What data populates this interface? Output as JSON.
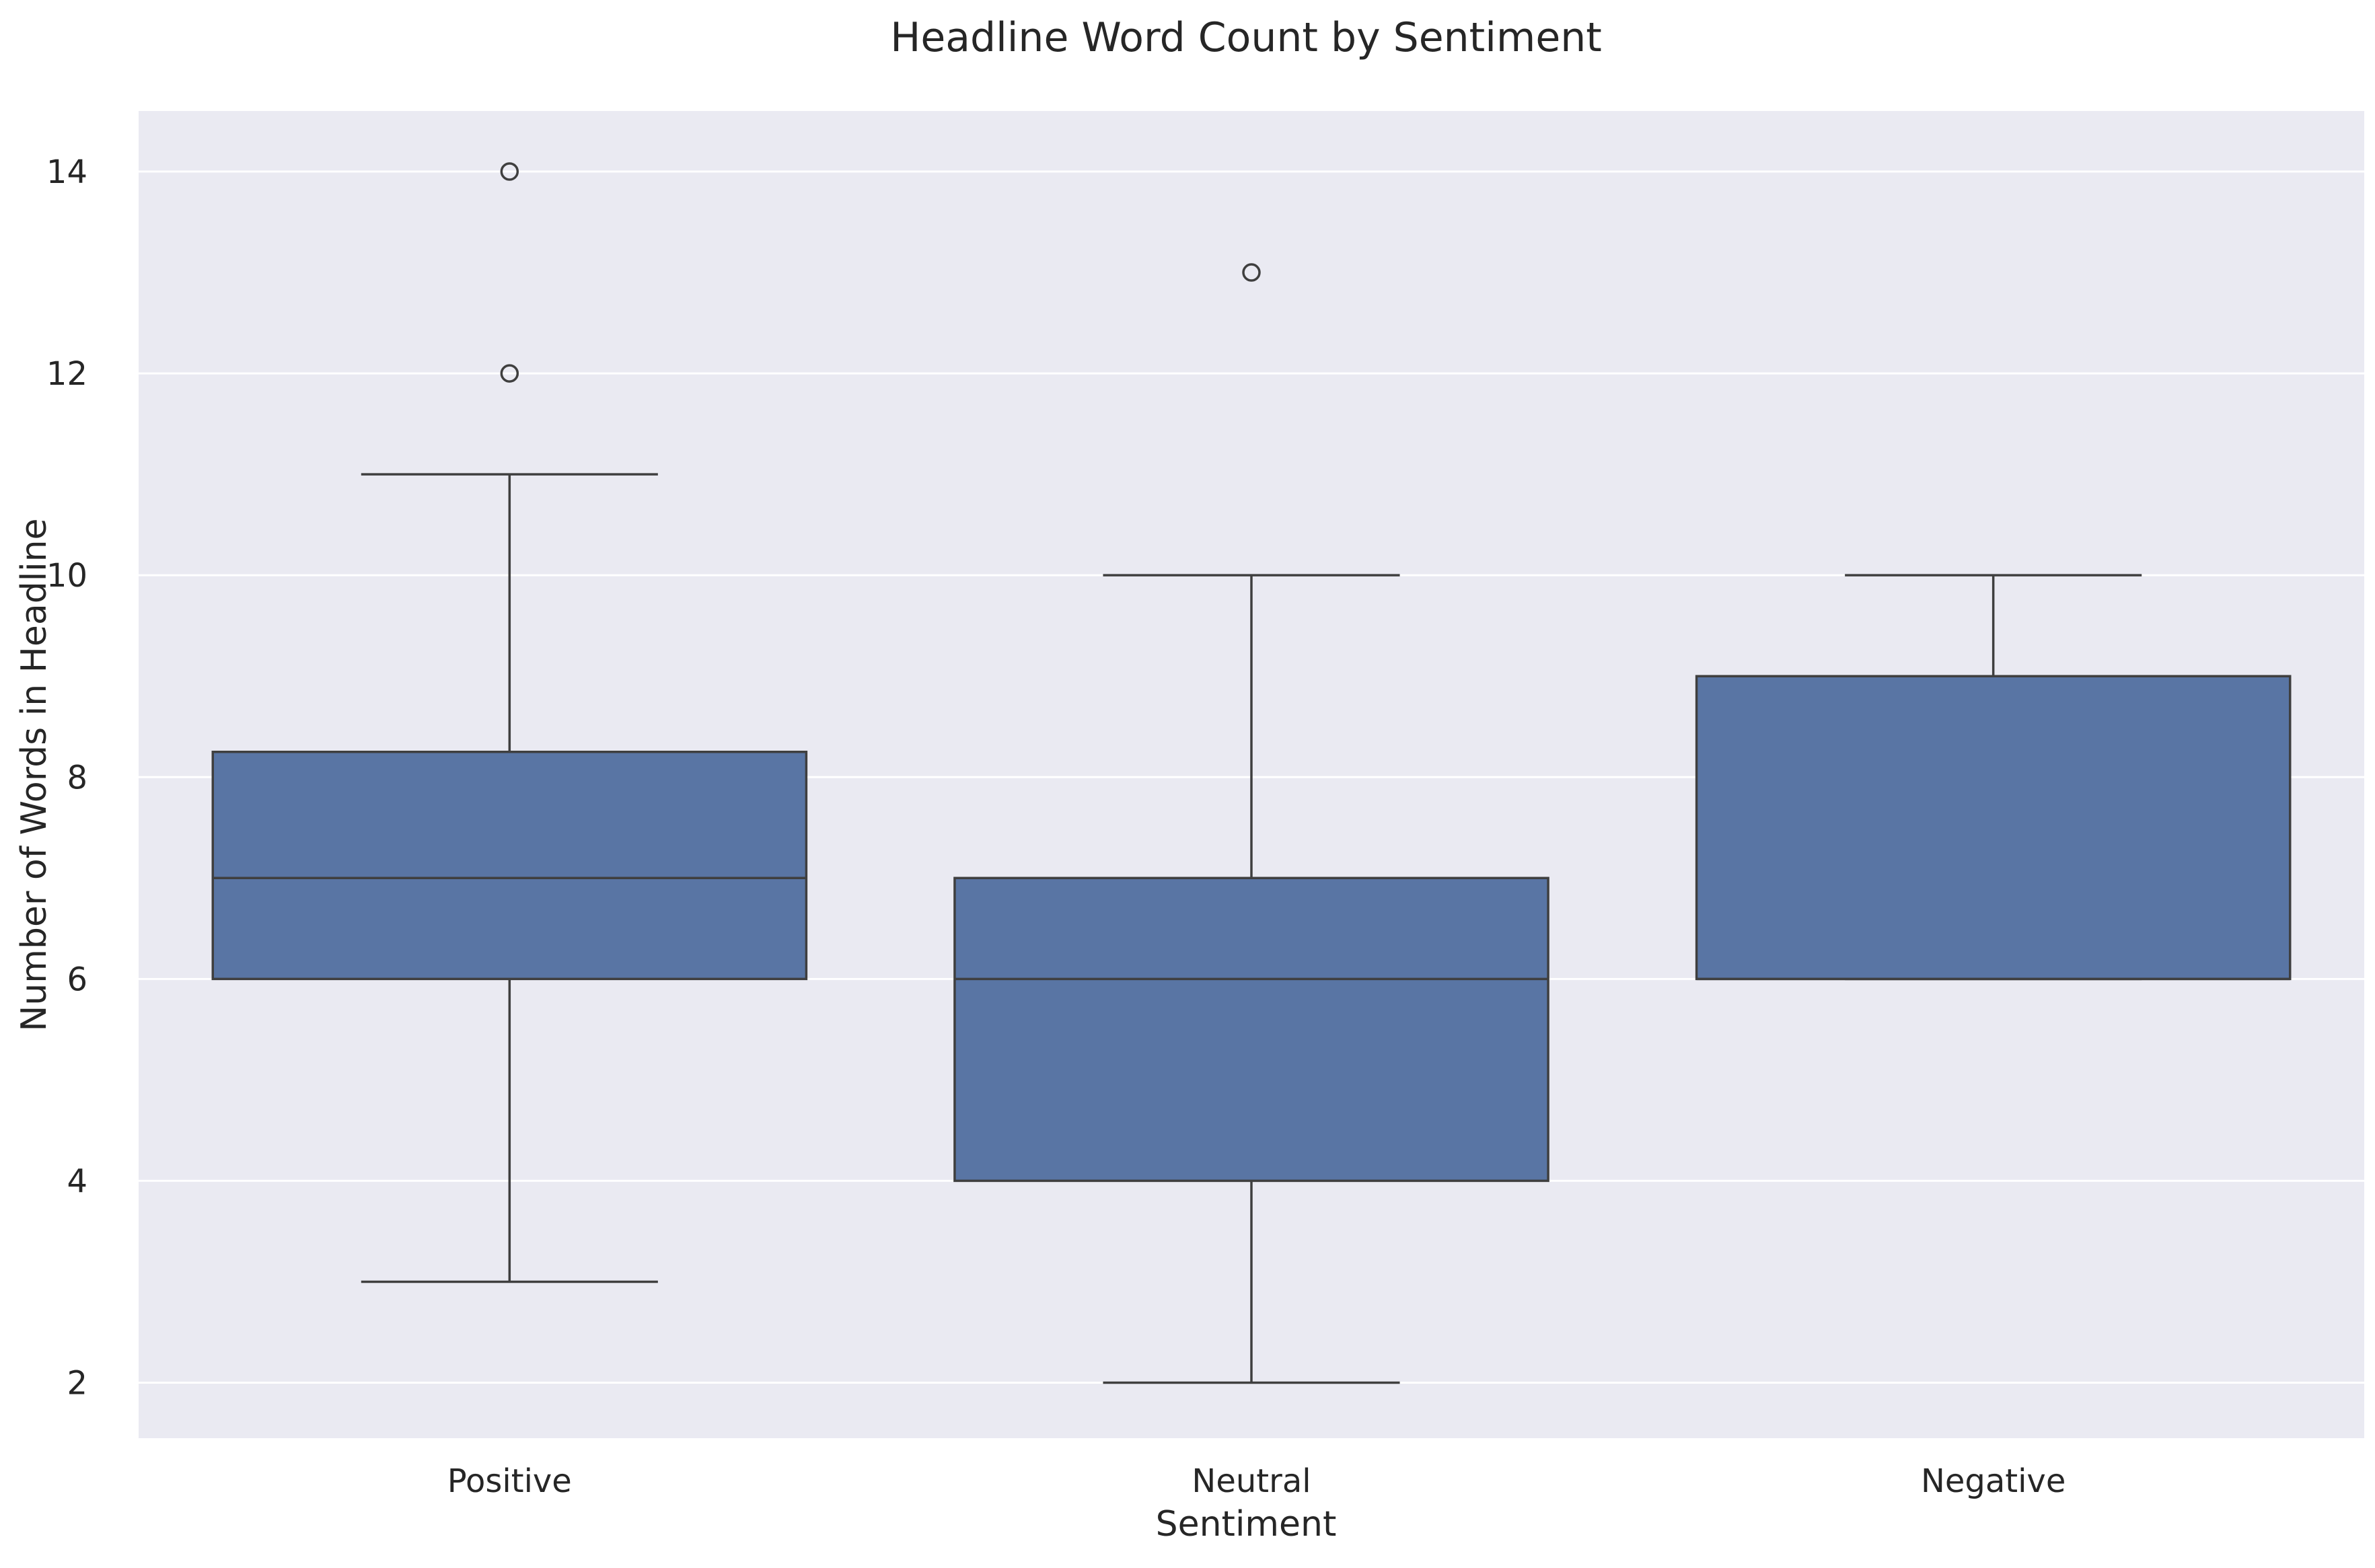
{
  "chart_data": {
    "type": "box",
    "title": "Headline Word Count by Sentiment",
    "xlabel": "Sentiment",
    "ylabel": "Number of Words in Headline",
    "categories": [
      "Positive",
      "Neutral",
      "Negative"
    ],
    "ylim": [
      1.45,
      14.6
    ],
    "yticks": [
      2,
      4,
      6,
      8,
      10,
      12,
      14
    ],
    "grid": true,
    "colors": {
      "box_fill": "#5975a4",
      "line": "#3f3f3f",
      "background": "#eaeaf2",
      "grid": "#ffffff"
    },
    "boxes": [
      {
        "category": "Positive",
        "whisker_low": 3,
        "q1": 6,
        "median": 7,
        "q3": 8.25,
        "whisker_high": 11,
        "outliers": [
          12,
          14
        ]
      },
      {
        "category": "Neutral",
        "whisker_low": 2,
        "q1": 4,
        "median": 6,
        "q3": 7,
        "whisker_high": 10,
        "outliers": [
          13
        ]
      },
      {
        "category": "Negative",
        "whisker_low": 6,
        "q1": 6,
        "median": 6,
        "q3": 9,
        "whisker_high": 10,
        "outliers": []
      }
    ]
  }
}
